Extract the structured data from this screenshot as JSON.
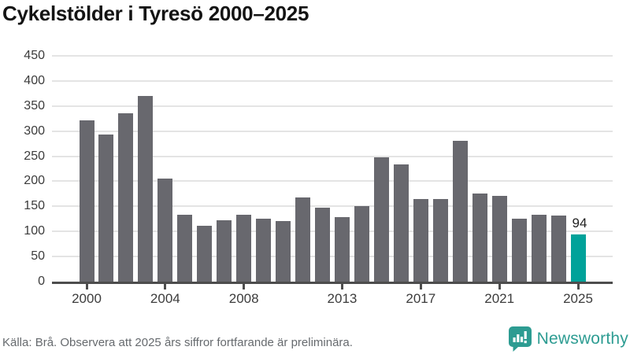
{
  "header": {
    "title": "Cykelstölder i Tyresö 2000–2025"
  },
  "chart_data": {
    "type": "bar",
    "title": "Cykelstölder i Tyresö 2000–2025",
    "xlabel": "",
    "ylabel": "",
    "categories": [
      2000,
      2001,
      2002,
      2003,
      2004,
      2005,
      2006,
      2007,
      2008,
      2009,
      2010,
      2011,
      2012,
      2013,
      2014,
      2015,
      2016,
      2017,
      2018,
      2019,
      2020,
      2021,
      2022,
      2023,
      2024,
      2025
    ],
    "values": [
      322,
      294,
      336,
      370,
      205,
      134,
      112,
      123,
      134,
      125,
      120,
      168,
      148,
      128,
      151,
      248,
      234,
      164,
      164,
      280,
      175,
      171,
      125,
      133,
      132,
      94
    ],
    "ylim": [
      0,
      450
    ],
    "ytick_step": 50,
    "xticks": [
      2000,
      2004,
      2008,
      2013,
      2017,
      2021,
      2025
    ],
    "grid": "horizontal",
    "legend": "none",
    "bar_color": "#68686e",
    "highlight_index": 25,
    "highlight_color": "#00a29a",
    "highlight_label": "94"
  },
  "footer": {
    "source": "Källa: Brå. Observera att 2025 års siffror fortfarande är preliminära.",
    "brand": "Newsworthy",
    "brand_color": "#2d9c92"
  },
  "icons": {
    "logo": "newsworthy-logo-icon"
  }
}
